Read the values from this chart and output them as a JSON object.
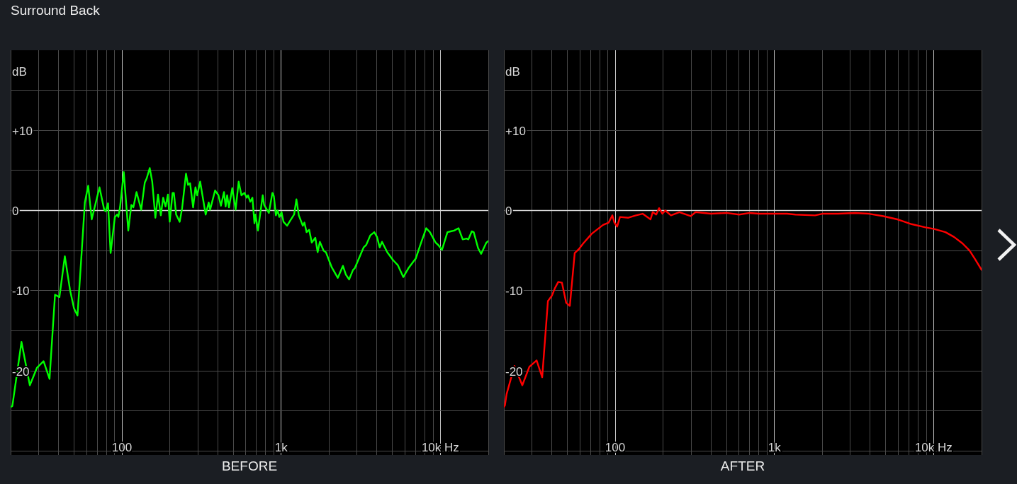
{
  "chart_data": [
    {
      "type": "line",
      "title": "Surround Back",
      "xlabel": "BEFORE",
      "ylabel": "dB",
      "log": "x",
      "grid": true,
      "marker": "none",
      "xlim": [
        20,
        20000
      ],
      "ylim": [
        -30.5,
        20
      ],
      "xticks": [
        {
          "value": 20,
          "label": null
        },
        {
          "value": 30,
          "label": null
        },
        {
          "value": 40,
          "label": null
        },
        {
          "value": 50,
          "label": null
        },
        {
          "value": 60,
          "label": null
        },
        {
          "value": 70,
          "label": null
        },
        {
          "value": 80,
          "label": null
        },
        {
          "value": 90,
          "label": null
        },
        100,
        {
          "value": 200,
          "label": null
        },
        {
          "value": 300,
          "label": null
        },
        {
          "value": 400,
          "label": null
        },
        {
          "value": 500,
          "label": null
        },
        {
          "value": 600,
          "label": null
        },
        {
          "value": 700,
          "label": null
        },
        {
          "value": 800,
          "label": null
        },
        {
          "value": 900,
          "label": null
        },
        {
          "value": 1000,
          "label": "1k"
        },
        {
          "value": 2000,
          "label": null
        },
        {
          "value": 3000,
          "label": null
        },
        {
          "value": 4000,
          "label": null
        },
        {
          "value": 5000,
          "label": null
        },
        {
          "value": 6000,
          "label": null
        },
        {
          "value": 7000,
          "label": null
        },
        {
          "value": 8000,
          "label": null
        },
        {
          "value": 9000,
          "label": null
        },
        {
          "value": 10000,
          "label": "10k Hz"
        },
        {
          "value": 20000,
          "label": null
        }
      ],
      "yticks": [
        {
          "value": -30,
          "label": null
        },
        {
          "value": -25,
          "label": null
        },
        -20,
        {
          "value": -15,
          "label": null
        },
        -10,
        {
          "value": -5,
          "label": null
        },
        0,
        {
          "value": 5,
          "label": null
        },
        {
          "value": 10,
          "label": "+10"
        },
        {
          "value": 15,
          "label": null
        }
      ],
      "ref_lines": [
        {
          "axis": "y",
          "value": 0,
          "color": "#d9d9d9"
        }
      ],
      "color": "#00ff00",
      "x": [
        20,
        20.5,
        23.4,
        26.4,
        29.3,
        32.2,
        35.1,
        38,
        40.5,
        43.8,
        47.2,
        50,
        52.6,
        56,
        58.5,
        61.4,
        64.6,
        72.3,
        77.4,
        79,
        81.8,
        84.9,
        90.3,
        93.4,
        95,
        97.3,
        102.7,
        109.6,
        114.6,
        118,
        123.5,
        132.2,
        139.2,
        143,
        149.5,
        155,
        162.2,
        168.5,
        175.5,
        181.6,
        188,
        194.5,
        199.6,
        208,
        212,
        219,
        230.6,
        238.8,
        252.7,
        260,
        268,
        280,
        289.7,
        297,
        310,
        335.7,
        350.7,
        358,
        384.6,
        404,
        418.7,
        437.5,
        448,
        458,
        470,
        493.5,
        517.5,
        541,
        563,
        588,
        608,
        620,
        640,
        660,
        680,
        690,
        715,
        766,
        782,
        837,
        881,
        900,
        927,
        950,
        974,
        1006,
        1034,
        1089,
        1145,
        1206,
        1247,
        1291,
        1368,
        1400,
        1445,
        1500,
        1557,
        1639,
        1695,
        1750,
        1848,
        1910,
        2080,
        2268,
        2443,
        2550,
        2671,
        2829,
        2900,
        3296,
        3420,
        3630,
        3845,
        4000,
        4159,
        4300,
        4640,
        5053,
        5400,
        5848,
        6300,
        6871,
        7000,
        7483,
        8150,
        8600,
        9338,
        9700,
        10236,
        11076,
        11600,
        12200,
        13000,
        13815,
        14600,
        15000,
        15740,
        16200,
        17260,
        18030,
        19450,
        20000
      ],
      "values": [
        -24.5,
        -24.4,
        -16.4,
        -21.8,
        -19.6,
        -18.8,
        -21.0,
        -10.5,
        -10.8,
        -5.7,
        -9.9,
        -12.2,
        -13.1,
        -4.9,
        1.0,
        3.1,
        -1.1,
        2.9,
        0.1,
        -0.1,
        0.9,
        -5.3,
        -0.8,
        -0.5,
        -0.8,
        0.4,
        4.8,
        -2.5,
        0.7,
        0.4,
        2.3,
        0.1,
        3.5,
        4.0,
        5.3,
        3.6,
        -0.9,
        2.0,
        -0.6,
        1.6,
        0.5,
        2.0,
        -1.4,
        2.2,
        2.2,
        -0.5,
        -1.4,
        0.3,
        4.6,
        3.2,
        3.4,
        0.4,
        2.9,
        1.9,
        3.6,
        -0.5,
        1.0,
        0.1,
        2.5,
        1.9,
        0.6,
        2.3,
        0.5,
        1.9,
        0.4,
        2.8,
        0.1,
        3.6,
        1.9,
        2.2,
        1.6,
        1.9,
        1.1,
        1.6,
        -1.6,
        -0.5,
        -2.5,
        1.9,
        0.7,
        -0.3,
        2.2,
        1.8,
        -0.6,
        0.0,
        -0.8,
        -0.2,
        -1.4,
        -1.9,
        -1.2,
        -0.5,
        1.4,
        -0.6,
        -1.9,
        -1.5,
        -2.7,
        -2.4,
        -4.0,
        -3.4,
        -5.2,
        -3.9,
        -5.0,
        -5.2,
        -7.1,
        -8.4,
        -6.9,
        -8.0,
        -8.6,
        -7.4,
        -7.2,
        -4.6,
        -4.3,
        -3.1,
        -2.7,
        -3.3,
        -4.6,
        -3.9,
        -5.2,
        -6.2,
        -6.8,
        -8.3,
        -7.2,
        -6.2,
        -6.0,
        -4.3,
        -2.2,
        -2.7,
        -4.0,
        -4.3,
        -4.9,
        -2.7,
        -2.6,
        -2.5,
        -2.2,
        -3.6,
        -3.5,
        -3.6,
        -2.6,
        -2.7,
        -4.7,
        -5.4,
        -4.0,
        -3.8
      ]
    },
    {
      "type": "line",
      "xlabel": "AFTER",
      "ylabel": "dB",
      "log": "x",
      "grid": true,
      "marker": "none",
      "xlim": [
        20,
        20000
      ],
      "ylim": [
        -30.5,
        20
      ],
      "xticks": [
        {
          "value": 20,
          "label": null
        },
        {
          "value": 30,
          "label": null
        },
        {
          "value": 40,
          "label": null
        },
        {
          "value": 50,
          "label": null
        },
        {
          "value": 60,
          "label": null
        },
        {
          "value": 70,
          "label": null
        },
        {
          "value": 80,
          "label": null
        },
        {
          "value": 90,
          "label": null
        },
        100,
        {
          "value": 200,
          "label": null
        },
        {
          "value": 300,
          "label": null
        },
        {
          "value": 400,
          "label": null
        },
        {
          "value": 500,
          "label": null
        },
        {
          "value": 600,
          "label": null
        },
        {
          "value": 700,
          "label": null
        },
        {
          "value": 800,
          "label": null
        },
        {
          "value": 900,
          "label": null
        },
        {
          "value": 1000,
          "label": "1k"
        },
        {
          "value": 2000,
          "label": null
        },
        {
          "value": 3000,
          "label": null
        },
        {
          "value": 4000,
          "label": null
        },
        {
          "value": 5000,
          "label": null
        },
        {
          "value": 6000,
          "label": null
        },
        {
          "value": 7000,
          "label": null
        },
        {
          "value": 8000,
          "label": null
        },
        {
          "value": 9000,
          "label": null
        },
        {
          "value": 10000,
          "label": "10k Hz"
        },
        {
          "value": 20000,
          "label": null
        }
      ],
      "yticks": [
        {
          "value": -30,
          "label": null
        },
        {
          "value": -25,
          "label": null
        },
        -20,
        {
          "value": -15,
          "label": null
        },
        -10,
        {
          "value": -5,
          "label": null
        },
        0,
        {
          "value": 5,
          "label": null
        },
        {
          "value": 10,
          "label": "+10"
        },
        {
          "value": 15,
          "label": null
        }
      ],
      "ref_lines": [
        {
          "axis": "y",
          "value": 0,
          "color": "#d9d9d9"
        }
      ],
      "color": "#ff0000",
      "x": [
        20,
        20.3,
        20.8,
        23.3,
        26.1,
        28.9,
        32.1,
        34.8,
        37.8,
        40.1,
        41.8,
        43.9,
        46.3,
        49.2,
        51.9,
        55.7,
        59.2,
        63,
        71.2,
        83.9,
        91,
        96,
        98.8,
        102.9,
        107.2,
        121,
        135,
        148.7,
        166.7,
        172,
        181,
        188.6,
        198,
        206.4,
        224,
        253,
        298,
        320,
        400,
        500,
        600,
        700,
        800,
        977,
        1200,
        1357,
        1800,
        2000,
        2500,
        3205,
        3932,
        4830,
        5921,
        7266,
        8917,
        10080,
        11873,
        13430,
        15180,
        16820,
        18250,
        20000
      ],
      "values": [
        -24.5,
        -24.3,
        -22.9,
        -19.4,
        -21.8,
        -19.5,
        -18.7,
        -20.8,
        -11.3,
        -10.6,
        -9.7,
        -8.9,
        -9.0,
        -11.5,
        -11.9,
        -5.3,
        -4.8,
        -4.1,
        -2.9,
        -1.8,
        -1.5,
        -0.6,
        -1.5,
        -2.0,
        -0.8,
        -0.9,
        -0.6,
        -0.4,
        -1.1,
        -0.2,
        -0.5,
        0.3,
        -0.4,
        0.0,
        -0.6,
        -0.2,
        -0.7,
        -0.2,
        -0.4,
        -0.3,
        -0.5,
        -0.3,
        -0.4,
        -0.4,
        -0.4,
        -0.5,
        -0.6,
        -0.4,
        -0.4,
        -0.3,
        -0.4,
        -0.7,
        -1.1,
        -1.7,
        -2.1,
        -2.3,
        -2.7,
        -3.3,
        -4.1,
        -5.0,
        -6.1,
        -7.4
      ]
    }
  ]
}
